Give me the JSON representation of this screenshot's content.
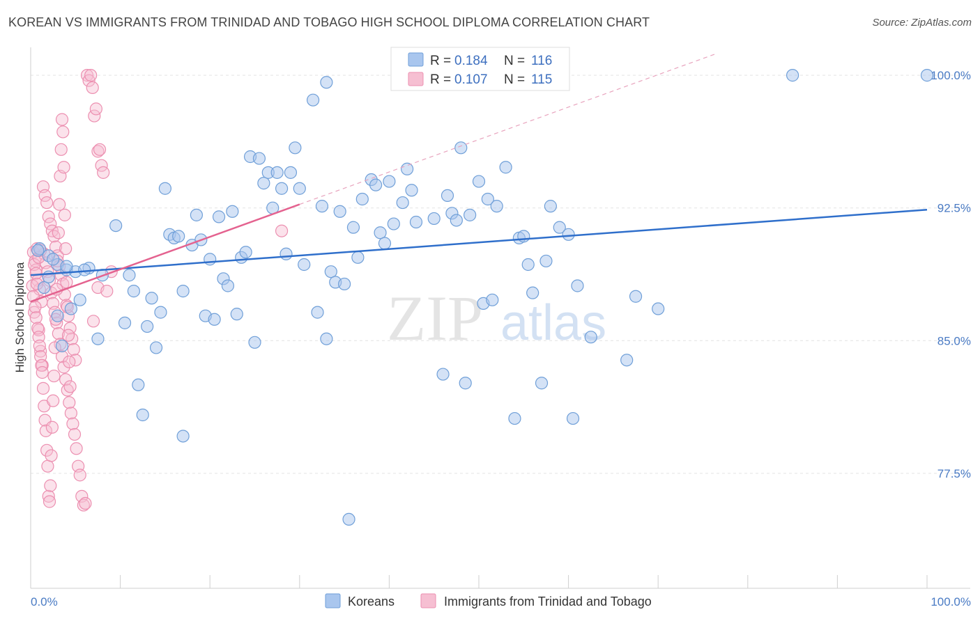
{
  "title": "KOREAN VS IMMIGRANTS FROM TRINIDAD AND TOBAGO HIGH SCHOOL DIPLOMA CORRELATION CHART",
  "source": "Source: ZipAtlas.com",
  "watermark": {
    "zip": "ZIP",
    "atlas": "atlas"
  },
  "colors": {
    "blue_fill": "#a9c6ee",
    "blue_stroke": "#6f9fd8",
    "blue_line": "#2f6fcb",
    "pink_fill": "#f6bfd2",
    "pink_stroke": "#ec8fb0",
    "pink_line": "#e4628f",
    "grid": "#e3e3e3",
    "tick_text": "#4a7bc4"
  },
  "legend": {
    "rows": [
      {
        "r_label": "R =",
        "r_value": "0.184",
        "n_label": "N =",
        "n_value": "116"
      },
      {
        "r_label": "R =",
        "r_value": "0.107",
        "n_label": "N =",
        "n_value": "115"
      }
    ]
  },
  "chart_data": {
    "type": "scatter",
    "title": "KOREAN VS IMMIGRANTS FROM TRINIDAD AND TOBAGO HIGH SCHOOL DIPLOMA CORRELATION CHART",
    "xlabel": "",
    "ylabel": "High School Diploma",
    "xlim": [
      0,
      100
    ],
    "ylim": [
      71.0,
      101.5
    ],
    "x_tick_labels": [
      "0.0%",
      "100.0%"
    ],
    "y_ticks": [
      77.5,
      85.0,
      92.5,
      100.0
    ],
    "y_tick_labels": [
      "77.5%",
      "85.0%",
      "92.5%",
      "100.0%"
    ],
    "grid": true,
    "legend_placement": "top-center",
    "series": [
      {
        "name": "Koreans",
        "r": 0.184,
        "n": 116,
        "trend": {
          "x": [
            0,
            100
          ],
          "y": [
            88.7,
            92.4
          ]
        },
        "points": [
          [
            1.0,
            90.2
          ],
          [
            2.0,
            89.8
          ],
          [
            3.0,
            89.3
          ],
          [
            4.0,
            89.0
          ],
          [
            5.0,
            88.9
          ],
          [
            6.5,
            89.1
          ],
          [
            8.0,
            88.7
          ],
          [
            1.5,
            88.0
          ],
          [
            3.0,
            86.4
          ],
          [
            4.5,
            86.8
          ],
          [
            5.5,
            87.3
          ],
          [
            7.5,
            85.1
          ],
          [
            9.5,
            91.5
          ],
          [
            10.5,
            86.0
          ],
          [
            11.0,
            88.7
          ],
          [
            11.5,
            87.8
          ],
          [
            12.0,
            82.5
          ],
          [
            12.5,
            80.8
          ],
          [
            13.0,
            85.8
          ],
          [
            13.5,
            87.4
          ],
          [
            14.0,
            84.6
          ],
          [
            14.5,
            86.6
          ],
          [
            15.0,
            93.6
          ],
          [
            15.5,
            91.0
          ],
          [
            16.0,
            90.8
          ],
          [
            16.5,
            90.9
          ],
          [
            17.0,
            87.8
          ],
          [
            17.0,
            79.6
          ],
          [
            18.0,
            90.4
          ],
          [
            18.5,
            92.1
          ],
          [
            19.0,
            90.7
          ],
          [
            19.5,
            86.4
          ],
          [
            20.0,
            89.6
          ],
          [
            20.5,
            86.2
          ],
          [
            21.0,
            92.0
          ],
          [
            21.5,
            88.5
          ],
          [
            22.0,
            88.1
          ],
          [
            22.5,
            92.3
          ],
          [
            23.0,
            86.5
          ],
          [
            23.5,
            89.7
          ],
          [
            24.0,
            90.0
          ],
          [
            24.5,
            95.4
          ],
          [
            25.0,
            84.9
          ],
          [
            25.5,
            95.3
          ],
          [
            26.0,
            93.9
          ],
          [
            26.5,
            94.5
          ],
          [
            27.0,
            92.5
          ],
          [
            27.5,
            94.5
          ],
          [
            28.0,
            93.6
          ],
          [
            28.5,
            89.9
          ],
          [
            29.0,
            94.5
          ],
          [
            29.5,
            95.9
          ],
          [
            30.0,
            93.6
          ],
          [
            30.5,
            89.3
          ],
          [
            31.5,
            98.6
          ],
          [
            32.0,
            86.6
          ],
          [
            32.5,
            92.6
          ],
          [
            33.0,
            85.1
          ],
          [
            33.5,
            88.9
          ],
          [
            34.0,
            88.3
          ],
          [
            34.5,
            92.3
          ],
          [
            35.0,
            88.2
          ],
          [
            35.5,
            74.9
          ],
          [
            36.0,
            91.4
          ],
          [
            36.5,
            89.7
          ],
          [
            37.0,
            93.0
          ],
          [
            38.0,
            94.1
          ],
          [
            38.5,
            93.8
          ],
          [
            39.0,
            91.1
          ],
          [
            39.5,
            90.5
          ],
          [
            40.0,
            94.0
          ],
          [
            40.5,
            91.6
          ],
          [
            41.0,
            100.0
          ],
          [
            41.5,
            92.8
          ],
          [
            42.0,
            94.7
          ],
          [
            42.5,
            93.5
          ],
          [
            43.0,
            91.7
          ],
          [
            45.0,
            91.9
          ],
          [
            46.0,
            83.1
          ],
          [
            46.5,
            93.2
          ],
          [
            47.0,
            92.2
          ],
          [
            47.5,
            91.8
          ],
          [
            48.0,
            95.9
          ],
          [
            48.5,
            82.6
          ],
          [
            49.0,
            92.1
          ],
          [
            50.0,
            94.0
          ],
          [
            50.5,
            87.1
          ],
          [
            51.0,
            93.0
          ],
          [
            51.5,
            87.3
          ],
          [
            52.0,
            92.6
          ],
          [
            53.0,
            94.8
          ],
          [
            54.0,
            80.6
          ],
          [
            54.5,
            90.8
          ],
          [
            55.0,
            90.9
          ],
          [
            55.5,
            89.3
          ],
          [
            56.0,
            87.7
          ],
          [
            57.0,
            82.6
          ],
          [
            57.5,
            89.5
          ],
          [
            58.0,
            92.6
          ],
          [
            59.0,
            91.4
          ],
          [
            60.0,
            91.0
          ],
          [
            60.5,
            80.6
          ],
          [
            61.0,
            88.1
          ],
          [
            62.5,
            85.2
          ],
          [
            66.5,
            83.9
          ],
          [
            67.5,
            87.5
          ],
          [
            70.0,
            86.8
          ],
          [
            85.0,
            100.0
          ],
          [
            100.0,
            100.0
          ],
          [
            3.5,
            84.7
          ],
          [
            2.5,
            89.6
          ],
          [
            6.0,
            89.0
          ],
          [
            2.0,
            88.6
          ],
          [
            4.0,
            89.2
          ],
          [
            33.0,
            99.6
          ],
          [
            0.8,
            90.1
          ]
        ]
      },
      {
        "name": "Immigrants from Trinidad and Tobago",
        "r": 0.107,
        "n": 115,
        "trend": {
          "x": [
            0,
            30
          ],
          "y": [
            87.2,
            92.7
          ]
        },
        "points": [
          [
            0.3,
            90.0
          ],
          [
            0.5,
            89.5
          ],
          [
            0.6,
            89.0
          ],
          [
            0.8,
            88.4
          ],
          [
            1.0,
            87.9
          ],
          [
            1.2,
            87.2
          ],
          [
            0.4,
            86.6
          ],
          [
            0.9,
            85.6
          ],
          [
            1.1,
            84.4
          ],
          [
            1.3,
            83.6
          ],
          [
            0.7,
            90.2
          ],
          [
            1.5,
            89.9
          ],
          [
            1.7,
            89.4
          ],
          [
            1.9,
            88.9
          ],
          [
            2.1,
            88.4
          ],
          [
            2.3,
            87.7
          ],
          [
            2.5,
            87.1
          ],
          [
            2.7,
            86.6
          ],
          [
            2.9,
            86.0
          ],
          [
            3.1,
            85.4
          ],
          [
            3.3,
            84.8
          ],
          [
            3.5,
            84.1
          ],
          [
            3.7,
            83.5
          ],
          [
            3.9,
            82.8
          ],
          [
            4.1,
            82.2
          ],
          [
            4.3,
            81.5
          ],
          [
            4.5,
            80.9
          ],
          [
            4.7,
            80.3
          ],
          [
            4.9,
            79.7
          ],
          [
            5.1,
            78.9
          ],
          [
            5.3,
            77.9
          ],
          [
            5.5,
            77.4
          ],
          [
            5.7,
            76.2
          ],
          [
            5.9,
            75.7
          ],
          [
            6.1,
            75.8
          ],
          [
            6.3,
            100.0
          ],
          [
            6.5,
            99.7
          ],
          [
            6.7,
            100.0
          ],
          [
            6.9,
            99.3
          ],
          [
            7.1,
            97.7
          ],
          [
            7.3,
            98.1
          ],
          [
            7.5,
            95.7
          ],
          [
            7.7,
            95.8
          ],
          [
            7.9,
            94.9
          ],
          [
            8.1,
            94.5
          ],
          [
            1.4,
            93.7
          ],
          [
            1.6,
            93.2
          ],
          [
            1.8,
            92.8
          ],
          [
            2.0,
            92.0
          ],
          [
            2.2,
            91.6
          ],
          [
            2.4,
            91.2
          ],
          [
            2.6,
            90.9
          ],
          [
            2.8,
            90.3
          ],
          [
            3.0,
            89.8
          ],
          [
            3.2,
            89.2
          ],
          [
            3.4,
            88.7
          ],
          [
            3.6,
            88.2
          ],
          [
            3.8,
            87.6
          ],
          [
            4.0,
            87.0
          ],
          [
            4.2,
            86.4
          ],
          [
            4.4,
            85.7
          ],
          [
            4.6,
            85.1
          ],
          [
            4.8,
            84.5
          ],
          [
            5.0,
            83.9
          ],
          [
            0.2,
            88.1
          ],
          [
            0.3,
            87.5
          ],
          [
            0.5,
            86.9
          ],
          [
            0.6,
            86.3
          ],
          [
            0.8,
            85.7
          ],
          [
            0.9,
            85.2
          ],
          [
            1.0,
            84.7
          ],
          [
            1.1,
            84.1
          ],
          [
            1.2,
            83.6
          ],
          [
            1.3,
            83.2
          ],
          [
            1.4,
            82.3
          ],
          [
            1.5,
            81.3
          ],
          [
            1.6,
            80.5
          ],
          [
            1.7,
            79.9
          ],
          [
            1.8,
            78.8
          ],
          [
            1.9,
            77.9
          ],
          [
            2.0,
            76.2
          ],
          [
            2.1,
            75.9
          ],
          [
            2.2,
            76.8
          ],
          [
            2.3,
            78.5
          ],
          [
            2.4,
            80.1
          ],
          [
            2.5,
            81.6
          ],
          [
            2.6,
            83.0
          ],
          [
            2.7,
            84.6
          ],
          [
            2.8,
            86.2
          ],
          [
            2.9,
            87.9
          ],
          [
            3.0,
            89.5
          ],
          [
            3.1,
            91.1
          ],
          [
            3.2,
            92.7
          ],
          [
            3.3,
            94.3
          ],
          [
            3.4,
            95.8
          ],
          [
            3.5,
            97.5
          ],
          [
            3.6,
            96.8
          ],
          [
            3.7,
            94.8
          ],
          [
            3.8,
            92.1
          ],
          [
            3.9,
            90.2
          ],
          [
            4.0,
            88.3
          ],
          [
            4.1,
            86.9
          ],
          [
            4.2,
            85.3
          ],
          [
            4.3,
            83.8
          ],
          [
            4.4,
            82.4
          ],
          [
            7.0,
            86.1
          ],
          [
            7.5,
            88.0
          ],
          [
            8.5,
            87.8
          ],
          [
            9.0,
            88.9
          ],
          [
            28.0,
            91.2
          ],
          [
            0.4,
            89.3
          ],
          [
            0.6,
            88.8
          ],
          [
            0.7,
            88.2
          ],
          [
            0.9,
            89.7
          ],
          [
            1.1,
            90.1
          ]
        ]
      }
    ]
  },
  "bottom_legend": {
    "items": [
      "Koreans",
      "Immigrants from Trinidad and Tobago"
    ]
  }
}
